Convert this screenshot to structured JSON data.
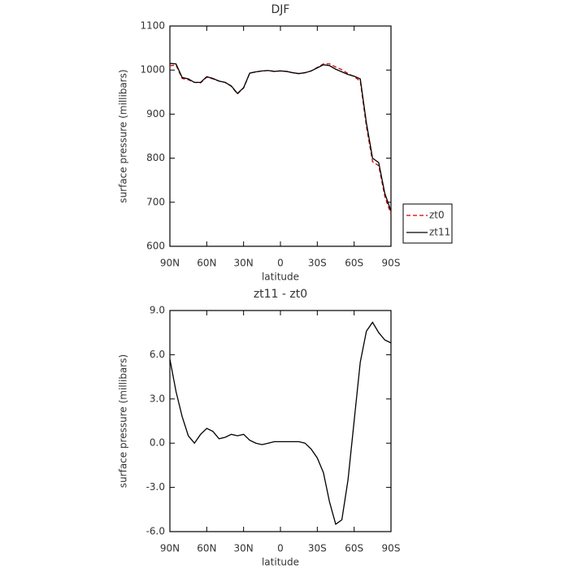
{
  "chart_data": [
    {
      "type": "line",
      "title": "DJF",
      "xlabel": "latitude",
      "ylabel": "surface pressure (millibars)",
      "x": [
        90,
        85,
        80,
        75,
        70,
        65,
        60,
        55,
        50,
        45,
        40,
        35,
        30,
        25,
        20,
        15,
        10,
        5,
        0,
        -5,
        -10,
        -15,
        -20,
        -25,
        -30,
        -35,
        -40,
        -45,
        -50,
        -55,
        -60,
        -65,
        -70,
        -75,
        -80,
        -85,
        -90
      ],
      "series": [
        {
          "name": "zt0",
          "color": "#cc0000",
          "line_style": "dashed",
          "values": [
            1010,
            1011,
            981,
            978,
            972,
            971,
            984,
            980,
            975,
            972,
            963,
            946,
            959,
            993,
            996,
            998,
            999,
            997,
            998,
            997,
            994,
            992,
            994,
            998,
            1006,
            1014,
            1014,
            1007,
            1001,
            992,
            985,
            975,
            872,
            792,
            783,
            713,
            673
          ]
        },
        {
          "name": "zt11",
          "color": "#000000",
          "line_style": "solid",
          "values": [
            1015,
            1014,
            983,
            980,
            972,
            972,
            985,
            981,
            975,
            972,
            964,
            947,
            960,
            993,
            996,
            998,
            999,
            997,
            998,
            997,
            994,
            992,
            994,
            998,
            1005,
            1012,
            1010,
            1002,
            996,
            990,
            986,
            980,
            880,
            800,
            790,
            720,
            680
          ]
        }
      ],
      "xlim": [
        90,
        -90
      ],
      "xticks": [
        {
          "value": 90,
          "label": "90N"
        },
        {
          "value": 60,
          "label": "60N"
        },
        {
          "value": 30,
          "label": "30N"
        },
        0,
        {
          "value": -30,
          "label": "30S"
        },
        {
          "value": -60,
          "label": "60S"
        },
        {
          "value": -90,
          "label": "90S"
        }
      ],
      "ylim": [
        600,
        1100
      ],
      "yticks": [
        600,
        700,
        800,
        900,
        1000,
        1100
      ],
      "legend": "right"
    },
    {
      "type": "line",
      "title": "zt11 - zt0",
      "xlabel": "latitude",
      "ylabel": "surface pressure (millibars)",
      "x": [
        90,
        85,
        80,
        75,
        70,
        65,
        60,
        55,
        50,
        45,
        40,
        35,
        30,
        25,
        20,
        15,
        10,
        5,
        0,
        -5,
        -10,
        -15,
        -20,
        -25,
        -30,
        -35,
        -40,
        -45,
        -50,
        -55,
        -60,
        -65,
        -70,
        -75,
        -80,
        -85,
        -90
      ],
      "values": [
        5.7,
        3.5,
        1.8,
        0.5,
        0.0,
        0.6,
        1.0,
        0.8,
        0.3,
        0.4,
        0.6,
        0.5,
        0.6,
        0.2,
        0.0,
        -0.1,
        0.0,
        0.1,
        0.1,
        0.1,
        0.1,
        0.1,
        0.0,
        -0.4,
        -1.0,
        -2.0,
        -4.0,
        -5.5,
        -5.2,
        -2.5,
        1.5,
        5.5,
        7.6,
        8.2,
        7.5,
        7.0,
        6.8
      ],
      "color": "#000000",
      "xlim": [
        90,
        -90
      ],
      "xticks": [
        {
          "value": 90,
          "label": "90N"
        },
        {
          "value": 60,
          "label": "60N"
        },
        {
          "value": 30,
          "label": "30N"
        },
        0,
        {
          "value": -30,
          "label": "30S"
        },
        {
          "value": -60,
          "label": "60S"
        },
        {
          "value": -90,
          "label": "90S"
        }
      ],
      "ylim": [
        -6,
        9
      ],
      "yticks": [
        {
          "value": -6,
          "label": "-6.0"
        },
        {
          "value": -3,
          "label": "-3.0"
        },
        {
          "value": 0,
          "label": "0.0"
        },
        {
          "value": 3,
          "label": "3.0"
        },
        {
          "value": 6,
          "label": "6.0"
        },
        {
          "value": 9,
          "label": "9.0"
        }
      ]
    }
  ]
}
